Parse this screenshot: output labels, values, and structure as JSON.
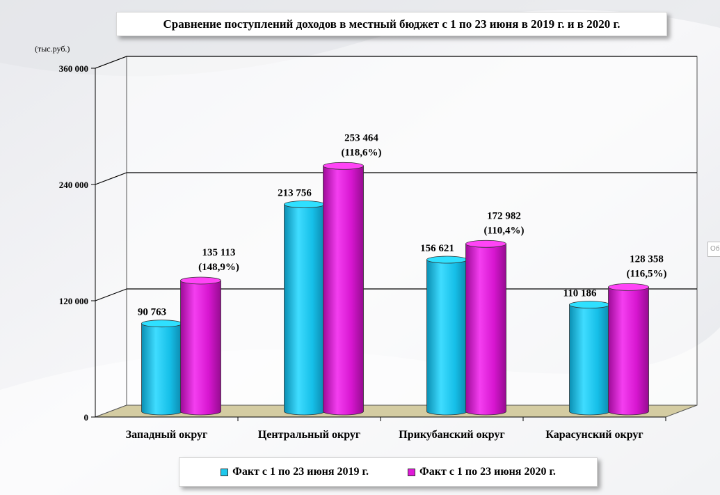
{
  "title": "Сравнение поступлений доходов в местный бюджет с 1 по 23 июня в 2019 г. и в 2020 г.",
  "unit_label": "(тыс.руб.)",
  "side_tab_text": "Об",
  "colors": {
    "series_2019": "#1ec8ec",
    "series_2020": "#e01ad8",
    "floor": "#d4cca2"
  },
  "chart_data": {
    "type": "bar",
    "title": "Сравнение поступлений доходов в местный бюджет с 1 по 23 июня в 2019 г. и в 2020 г.",
    "ylabel": "(тыс.руб.)",
    "ylim": [
      0,
      360000
    ],
    "yticks": [
      0,
      120000,
      240000,
      360000
    ],
    "ytick_labels": [
      "0",
      "120 000",
      "240 000",
      "360 000"
    ],
    "grid": true,
    "legend_position": "bottom",
    "categories": [
      "Западный округ",
      "Центральный округ",
      "Прикубанский округ",
      "Карасунский округ"
    ],
    "series": [
      {
        "name": "Факт с 1 по 23 июня 2019 г.",
        "values": [
          90763,
          213756,
          156621,
          110186
        ],
        "labels": [
          "90 763",
          "213 756",
          "156 621",
          "110 186"
        ]
      },
      {
        "name": "Факт с 1 по 23 июня 2020 г.",
        "values": [
          135113,
          253464,
          172982,
          128358
        ],
        "labels": [
          "135 113",
          "253 464",
          "172 982",
          "128 358"
        ],
        "percent_labels": [
          "(148,9%)",
          "(118,6%)",
          "(110,4%)",
          "(116,5%)"
        ]
      }
    ]
  }
}
